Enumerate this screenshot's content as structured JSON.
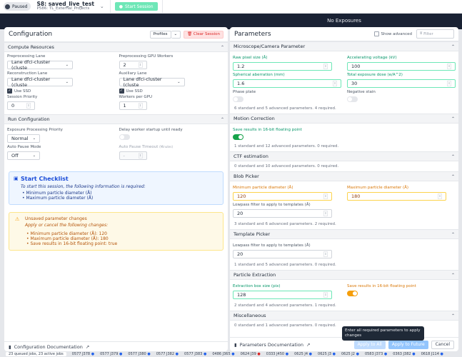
{
  "header": {
    "status": "Paused",
    "session_title": "S8: saved_live_test",
    "project": "P586: TL_External_Projects",
    "start_label": "Start Session",
    "banner": "No Exposures"
  },
  "config": {
    "title": "Configuration",
    "profiles": "Profiles",
    "clear": "Clear Session",
    "compute": {
      "title": "Compute Resources",
      "pre_lane_label": "Preprocessing Lane",
      "pre_lane": "Lane dfci-cluster (cluste",
      "gpu_label": "Preprocessing GPU Workers",
      "gpu": "2",
      "recon_label": "Reconstruction Lane",
      "recon": "Lane dfci-cluster (cluste",
      "aux_label": "Auxiliary Lane",
      "aux": "Lane dfci-cluster (cluste",
      "ssd": "Use SSD",
      "prio_label": "Session Priority",
      "prio": "0",
      "wpg_label": "Workers per GPU",
      "wpg": "1"
    },
    "run": {
      "title": "Run Configuration",
      "epp_label": "Exposure Processing Priority",
      "epp": "Normal",
      "delay_label": "Delay worker startup until ready",
      "apm_label": "Auto Pause Mode",
      "apm": "Off",
      "apt_label": "Auto Pause Timeout",
      "apt_unit": "(Minutes)",
      "apt": "-"
    },
    "checklist": {
      "title": "Start Checklist",
      "intro": "To start this session, the following information is required:",
      "items": [
        "Minimum particle diameter (Å)",
        "Maximum particle diameter (Å)"
      ]
    },
    "unsaved": {
      "title": "Unsaved parameter changes",
      "intro": "Apply or cancel the following changes:",
      "items": [
        "Minimum particle diameter (Å): 120",
        "Maximum particle diameter (Å): 180",
        "Save results in 16-bit floating point: true"
      ]
    },
    "doc": "Configuration Documentation"
  },
  "params": {
    "title": "Parameters",
    "show_advanced": "Show advanced",
    "filter_placeholder": "Filter",
    "micro": {
      "title": "Microscope/Camera Parameter",
      "pix_label": "Raw pixel size (Å)",
      "pix": "1.2",
      "kv_label": "Accelerating voltage (kV)",
      "kv": "100",
      "cs_label": "Spherical aberration (mm)",
      "cs": "1.6",
      "dose_label": "Total exposure dose (e/A^2)",
      "dose": "30",
      "pp_label": "Phase plate",
      "ns_label": "Negative stain",
      "count": "6 standard and 5 advanced parameters. 4 required."
    },
    "motion": {
      "title": "Motion Correction",
      "f16_label": "Save results in 16-bit floating point",
      "count": "1 standard and 12 advanced parameters. 0 required."
    },
    "ctf": {
      "title": "CTF estimation",
      "count": "0 standard and 10 advanced parameters. 0 required."
    },
    "blob": {
      "title": "Blob Picker",
      "min_label": "Minimum particle diameter (Å)",
      "min": "120",
      "max_label": "Maximum particle diameter (Å)",
      "max": "180",
      "lp_label": "Lowpass filter to apply to templates (Å)",
      "lp": "20",
      "count": "3 standard and 6 advanced parameters. 2 required."
    },
    "template": {
      "title": "Template Picker",
      "lp_label": "Lowpass filter to apply to templates (Å)",
      "lp": "20",
      "count": "1 standard and 5 advanced parameters. 0 required."
    },
    "extract": {
      "title": "Particle Extraction",
      "box_label": "Extraction box size (pix)",
      "box": "128",
      "f16_label": "Save results in 16-bit floating point",
      "count": "2 standard and 4 advanced parameters. 1 required."
    },
    "misc": {
      "title": "Miscellaneous",
      "count": "0 standard and 1 advanced parameters. 0 required."
    },
    "doc": "Parameters Documentation",
    "apply_all": "Apply to All",
    "apply_future": "Apply to Future",
    "cancel": "Cancel",
    "tooltip": "Enter all required parameters to apply changes"
  },
  "jobs": {
    "summary": "23 queued jobs, 23 active jobs",
    "items": [
      "0577 J378",
      "0577 J379",
      "0577 J380",
      "0577 J382",
      "0577 J383",
      "0486 J365",
      "0624 J39",
      "0333 J450",
      "0625 J4",
      "0625 J3",
      "0625 J2",
      "0583 J373",
      "0363 J382",
      "0618 J114"
    ]
  }
}
